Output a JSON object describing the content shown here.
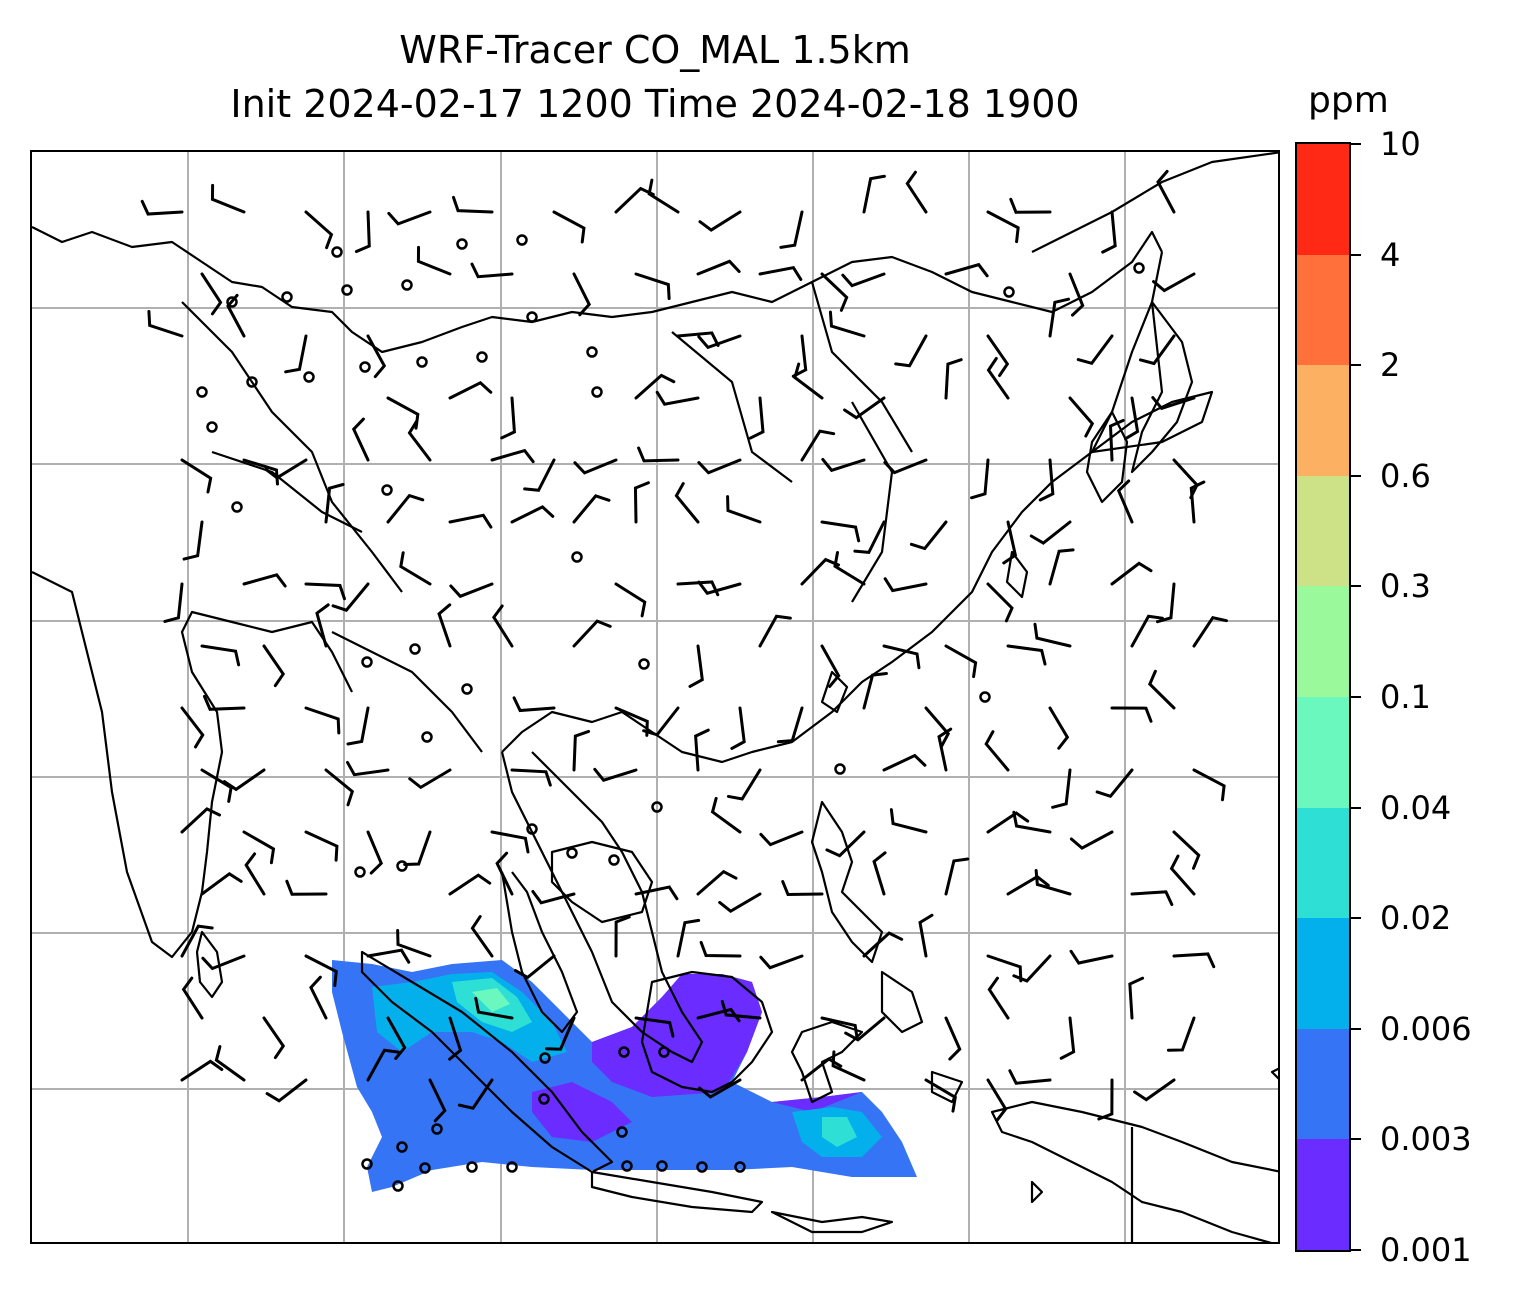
{
  "title": {
    "line1": "WRF-Tracer CO_MAL 1.5km",
    "line2": "Init 2024-02-17 1200 Time 2024-02-18 1900"
  },
  "colorbar": {
    "unit": "ppm",
    "ticks": [
      "10",
      "4",
      "2",
      "0.6",
      "0.3",
      "0.1",
      "0.04",
      "0.02",
      "0.006",
      "0.003",
      "0.001"
    ],
    "colors": [
      "#6a2cff",
      "#3574f5",
      "#04b0ec",
      "#2ddfd4",
      "#6af8be",
      "#9af99a",
      "#cde287",
      "#fbb062",
      "#ff703b",
      "#ff2915"
    ]
  },
  "map": {
    "grid": true,
    "features": [
      "coastlines",
      "country-borders",
      "wind-barbs",
      "calm-wind-circles",
      "tracer-concentration-fill"
    ]
  }
}
